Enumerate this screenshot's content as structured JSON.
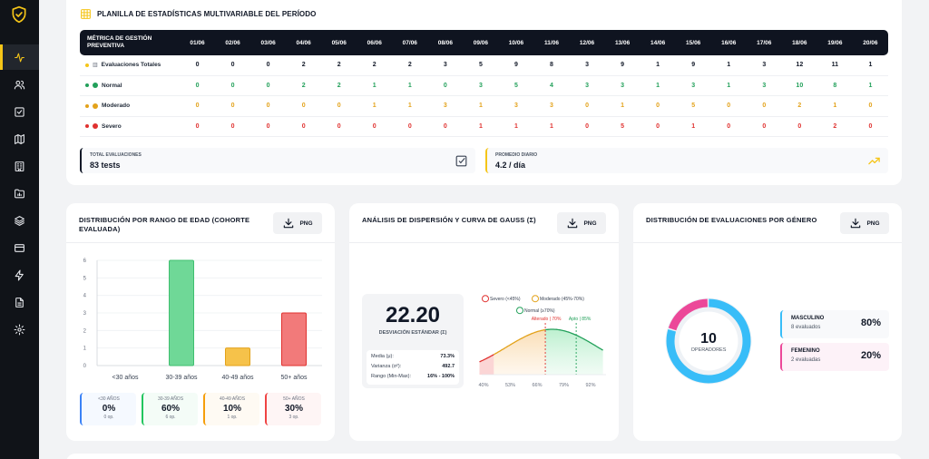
{
  "sidebar": {
    "logo_icon": "shield-check-icon",
    "items": [
      {
        "icon": "activity-icon",
        "active": true
      },
      {
        "icon": "users-icon"
      },
      {
        "icon": "checkbox-icon"
      },
      {
        "icon": "map-icon"
      },
      {
        "icon": "building-icon"
      },
      {
        "icon": "folder-chart-icon"
      },
      {
        "icon": "layers-icon"
      },
      {
        "icon": "card-icon"
      },
      {
        "icon": "bolt-icon"
      },
      {
        "icon": "document-icon"
      },
      {
        "icon": "settings-icon"
      }
    ],
    "accent": "#f5c518"
  },
  "table": {
    "title": "PLANILLA DE ESTADÍSTICAS MULTIVARIABLE DEL PERÍODO",
    "metric_header": "MÉTRICA DE GESTIÓN PREVENTIVA",
    "dates": [
      "01/06",
      "02/06",
      "03/06",
      "04/06",
      "05/06",
      "06/06",
      "07/06",
      "08/06",
      "09/06",
      "10/06",
      "11/06",
      "12/06",
      "13/06",
      "14/06",
      "15/06",
      "16/06",
      "17/06",
      "18/06",
      "19/06",
      "20/06"
    ],
    "rows": [
      {
        "label": "Evaluaciones Totales",
        "icon": "📊",
        "color": "#111827",
        "dot": "#f5c518",
        "values": [
          "0",
          "0",
          "0",
          "2",
          "2",
          "2",
          "2",
          "3",
          "5",
          "9",
          "8",
          "3",
          "9",
          "1",
          "9",
          "1",
          "3",
          "12",
          "11",
          "1"
        ]
      },
      {
        "label": "Normal",
        "icon": "green-circle",
        "color": "#22a05a",
        "dot": "#22a05a",
        "values": [
          "0",
          "0",
          "0",
          "2",
          "2",
          "1",
          "1",
          "0",
          "3",
          "5",
          "4",
          "3",
          "3",
          "1",
          "3",
          "1",
          "3",
          "10",
          "8",
          "1"
        ]
      },
      {
        "label": "Moderado",
        "icon": "orange-circle",
        "color": "#e3a21a",
        "dot": "#e3a21a",
        "values": [
          "0",
          "0",
          "0",
          "0",
          "0",
          "1",
          "1",
          "3",
          "1",
          "3",
          "3",
          "0",
          "1",
          "0",
          "5",
          "0",
          "0",
          "2",
          "1",
          "0"
        ]
      },
      {
        "label": "Severo",
        "icon": "red-circle",
        "color": "#e0312f",
        "dot": "#e0312f",
        "values": [
          "0",
          "0",
          "0",
          "0",
          "0",
          "0",
          "0",
          "0",
          "1",
          "1",
          "1",
          "0",
          "5",
          "0",
          "1",
          "0",
          "0",
          "0",
          "2",
          "0"
        ]
      }
    ]
  },
  "summary": {
    "total_label": "TOTAL EVALUACIONES",
    "total_value": "83 tests",
    "avg_label": "PROMEDIO DIARIO",
    "avg_value": "4.2 / día"
  },
  "age_chart": {
    "title": "DISTRIBUCIÓN POR RANGO DE EDAD (COHORTE EVALUADA)",
    "png_label": "PNG",
    "cards": [
      {
        "name": "<30 AÑOS",
        "pct": "0%",
        "ops": "0 op.",
        "color": "#3b82f6"
      },
      {
        "name": "30-39 AÑOS",
        "pct": "60%",
        "ops": "6 op.",
        "color": "#22c55e"
      },
      {
        "name": "40-49 AÑOS",
        "pct": "10%",
        "ops": "1 op.",
        "color": "#f59e0b"
      },
      {
        "name": "50+ AÑOS",
        "pct": "30%",
        "ops": "3 op.",
        "color": "#ef4444"
      }
    ]
  },
  "chart_data": {
    "type": "bar",
    "categories": [
      "<30 años",
      "30-39 años",
      "40-49 años",
      "50+ años"
    ],
    "values": [
      0,
      6,
      1,
      3
    ],
    "colors": [
      "#3b82f6",
      "#6fd897",
      "#f6c24a",
      "#f27a7a"
    ],
    "yticks": [
      "0",
      "1",
      "2",
      "3",
      "4",
      "5",
      "6"
    ],
    "ylim": [
      0,
      6
    ],
    "grid": true
  },
  "gauss": {
    "title": "ANÁLISIS DE DISPERSIÓN Y CURVA DE GAUSS (Σ)",
    "png_label": "PNG",
    "sd_value": "22.20",
    "sd_label": "DESVIACIÓN ESTÁNDAR (Σ)",
    "stats": [
      {
        "k": "Media (μ):",
        "v": "73.3%"
      },
      {
        "k": "Varianza (σ²):",
        "v": "492.7"
      },
      {
        "k": "Rango (Min-Max):",
        "v": "16% - 100%"
      }
    ],
    "legend": [
      "Severo (<45%)",
      "Moderado (45%-70%)",
      "Normal (≥70%)"
    ],
    "marker_left": "Alterado | 70%",
    "marker_right": "Apto | 85%",
    "x_ticks": [
      "40%",
      "53%",
      "66%",
      "79%",
      "92%"
    ]
  },
  "gender": {
    "title": "DISTRIBUCIÓN DE EVALUACIONES POR GÉNERO",
    "png_label": "PNG",
    "total": "10",
    "total_label": "OPERADORES",
    "items": [
      {
        "name": "MASCULINO",
        "count": "8 evaluados",
        "pct": "80%",
        "color": "#38bdf8",
        "fraction": 0.8
      },
      {
        "name": "FEMENINO",
        "count": "2 evaluadas",
        "pct": "20%",
        "color": "#ec4899",
        "fraction": 0.2
      }
    ]
  }
}
